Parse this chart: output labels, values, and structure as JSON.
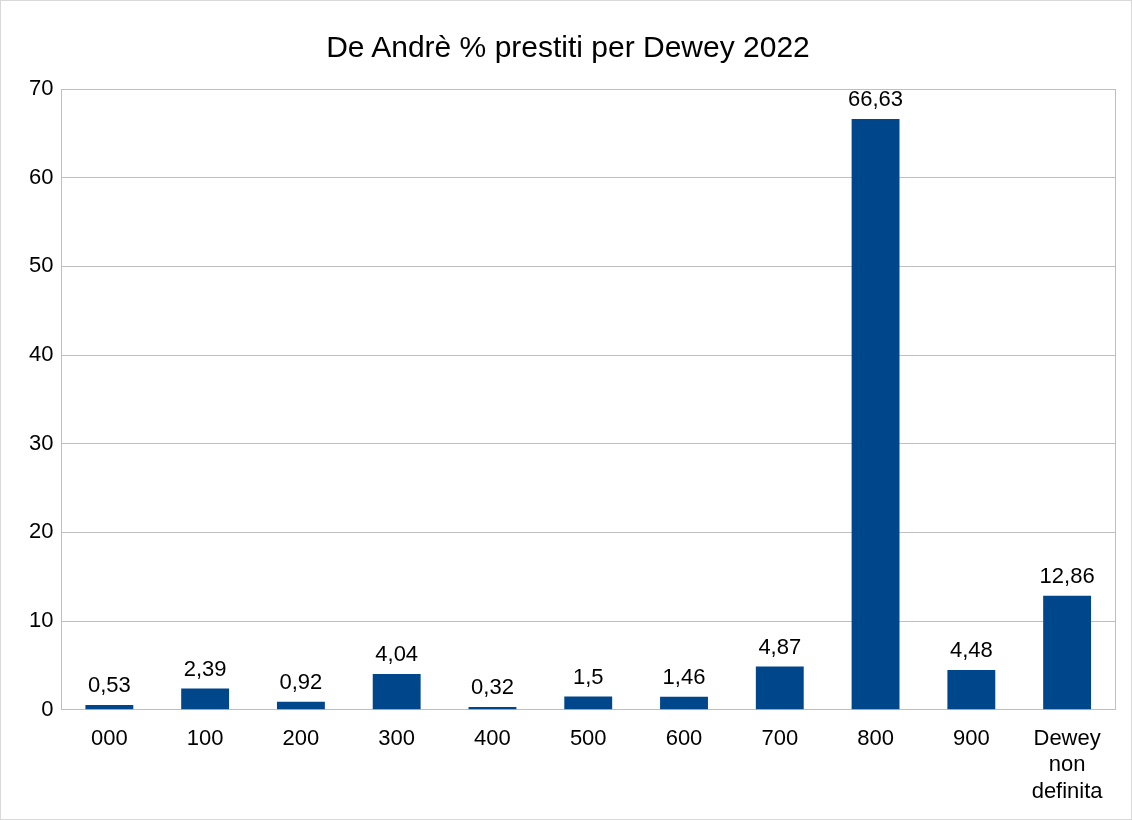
{
  "chart_data": {
    "type": "bar",
    "title": "De Andrè % prestiti per Dewey 2022",
    "categories": [
      "000",
      "100",
      "200",
      "300",
      "400",
      "500",
      "600",
      "700",
      "800",
      "900",
      "Dewey non definita"
    ],
    "values": [
      0.53,
      2.39,
      0.92,
      4.04,
      0.32,
      1.5,
      1.46,
      4.87,
      66.63,
      4.48,
      12.86
    ],
    "value_labels": [
      "0,53",
      "2,39",
      "0,92",
      "4,04",
      "0,32",
      "1,5",
      "1,46",
      "4,87",
      "66,63",
      "4,48",
      "12,86"
    ],
    "color": "#00468b",
    "ylim": [
      0,
      70
    ],
    "yticks": [
      0,
      10,
      20,
      30,
      40,
      50,
      60,
      70
    ],
    "grid": "y",
    "legend": false
  }
}
